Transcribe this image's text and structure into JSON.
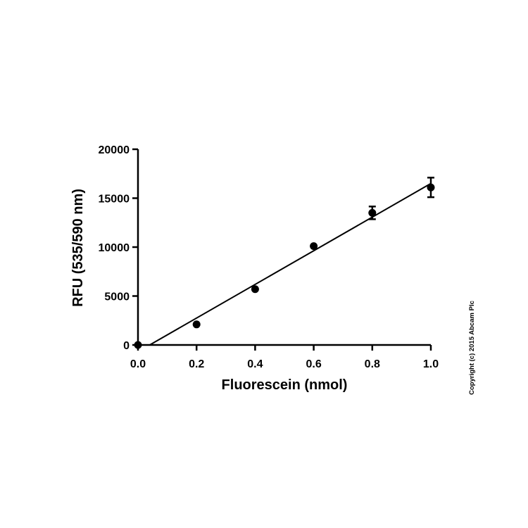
{
  "chart_data": {
    "type": "scatter",
    "title": "",
    "xlabel": "Fluorescein (nmol)",
    "ylabel": "RFU (535/590 nm)",
    "xlim": [
      0.0,
      1.0
    ],
    "ylim": [
      0,
      20000
    ],
    "x_ticks": [
      "0.0",
      "0.2",
      "0.4",
      "0.6",
      "0.8",
      "1.0"
    ],
    "y_ticks": [
      "0",
      "5000",
      "10000",
      "15000",
      "20000"
    ],
    "grid": false,
    "legend": "none",
    "series": [
      {
        "x": [
          0.0,
          0.2,
          0.4,
          0.6,
          0.8,
          1.0
        ],
        "y": [
          0,
          2100,
          5700,
          10100,
          13500,
          16100
        ],
        "error": [
          0,
          0,
          0,
          0,
          650,
          1000
        ]
      }
    ],
    "fit_line": {
      "type": "linear",
      "x": [
        0.04,
        1.0
      ],
      "y": [
        0,
        16500
      ]
    },
    "colors": {
      "points": "#000000",
      "line": "#000000",
      "axes": "#000000"
    }
  },
  "copyright": "Copyright (c) 2015 Abcam Plc"
}
